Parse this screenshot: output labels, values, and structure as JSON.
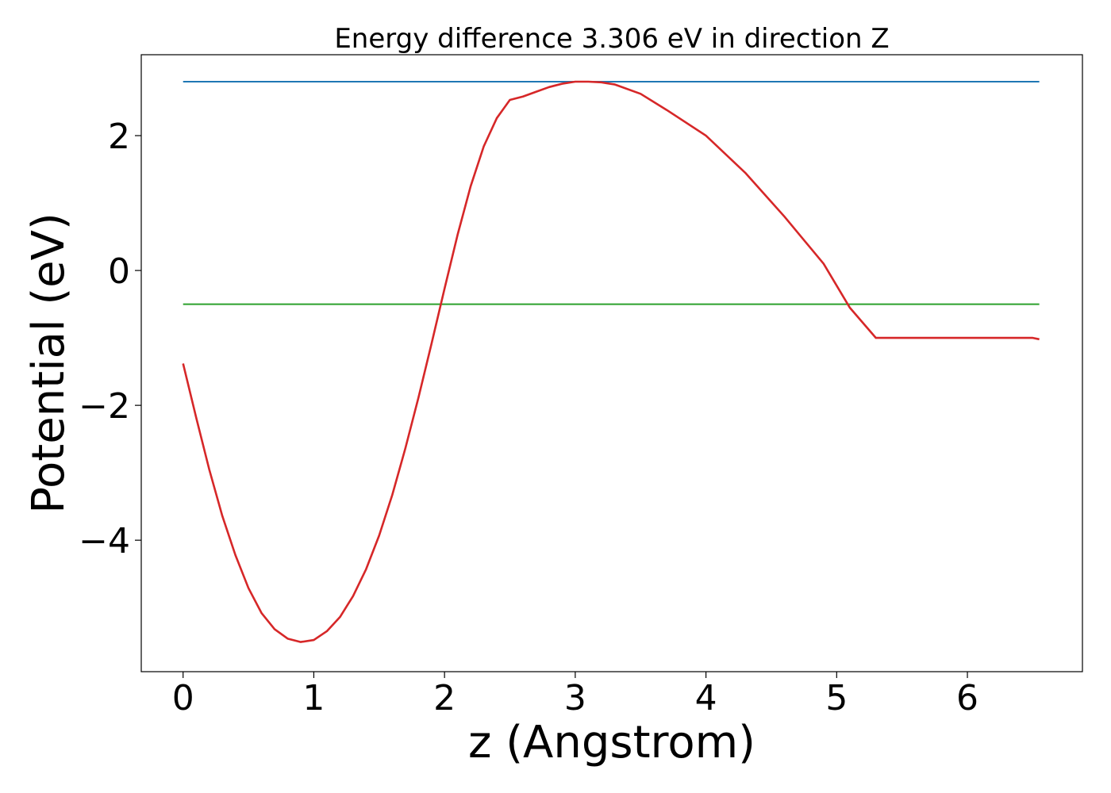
{
  "chart_data": {
    "type": "line",
    "title": "Energy difference 3.306 eV in direction Z",
    "xlabel": "z (Angstrom)",
    "ylabel": "Potential (eV)",
    "xlim": [
      -0.32,
      6.88
    ],
    "ylim": [
      -5.95,
      3.2
    ],
    "xticks": [
      0,
      1,
      2,
      3,
      4,
      5,
      6
    ],
    "xtick_labels": [
      "0",
      "1",
      "2",
      "3",
      "4",
      "5",
      "6"
    ],
    "yticks": [
      -4,
      -2,
      0,
      2
    ],
    "ytick_labels": [
      "−4",
      "−2",
      "0",
      "2"
    ],
    "grid": false,
    "legend": "none",
    "series": [
      {
        "color": "#1f77b4",
        "x": [
          0,
          6.55
        ],
        "y": [
          2.8,
          2.8
        ]
      },
      {
        "color": "#2ca02c",
        "x": [
          0,
          6.55
        ],
        "y": [
          -0.5,
          -0.5
        ]
      },
      {
        "color": "#d62728",
        "x": [
          0,
          0.1,
          0.2,
          0.3,
          0.4,
          0.5,
          0.6,
          0.7,
          0.8,
          0.9,
          1.0,
          1.1,
          1.2,
          1.3,
          1.4,
          1.5,
          1.6,
          1.7,
          1.8,
          1.9,
          2.0,
          2.1,
          2.2,
          2.3,
          2.4,
          2.5,
          2.6,
          2.7,
          2.8,
          2.9,
          3.0,
          3.1,
          3.2,
          3.3,
          3.5,
          3.7,
          4.0,
          4.3,
          4.6,
          4.9,
          5.1,
          5.3,
          5.5,
          5.7,
          5.8,
          5.9,
          6.0,
          6.1,
          6.2,
          6.3,
          6.4,
          6.5,
          6.55
        ],
        "y": [
          -1.38,
          -2.18,
          -2.95,
          -3.64,
          -4.22,
          -4.71,
          -5.08,
          -5.32,
          -5.46,
          -5.51,
          -5.48,
          -5.35,
          -5.14,
          -4.83,
          -4.43,
          -3.93,
          -3.33,
          -2.64,
          -1.89,
          -1.09,
          -0.27,
          0.53,
          1.25,
          1.84,
          2.26,
          2.53,
          2.58,
          2.65,
          2.72,
          2.77,
          2.8,
          2.8,
          2.79,
          2.76,
          2.62,
          2.38,
          2.0,
          1.45,
          0.8,
          0.1,
          -0.55,
          -1.0,
          -1.0,
          -1.0,
          -1.0,
          -1.0,
          -1.0,
          -1.0,
          -1.0,
          -1.0,
          -1.0,
          -1.0,
          -1.02
        ]
      }
    ]
  }
}
